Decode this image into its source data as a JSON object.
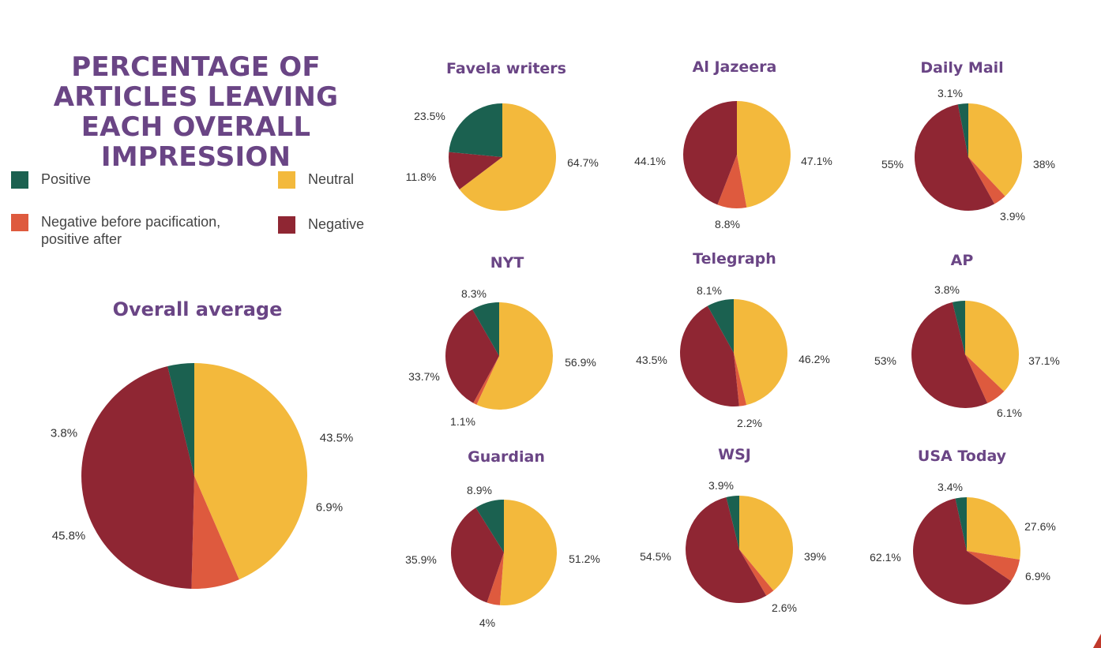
{
  "title": "PERCENTAGE OF ARTICLES LEAVING EACH OVERALL IMPRESSION",
  "legend": [
    {
      "label": "Positive",
      "color": "#1b6150"
    },
    {
      "label": "Neutral",
      "color": "#f3b93c"
    },
    {
      "label": "Negative before pacification, positive after",
      "color": "#de5a3e"
    },
    {
      "label": "Negative",
      "color": "#8f2633"
    }
  ],
  "colors": {
    "positive": "#1b6150",
    "neutral": "#f3b93c",
    "negbefore": "#de5a3e",
    "negative": "#8f2633",
    "title": "#6a4585"
  },
  "chart_data": [
    {
      "type": "pie",
      "title": "Overall average",
      "labels": [
        "Neutral",
        "Negative before pacification, positive after",
        "Negative",
        "Positive"
      ],
      "values": [
        43.5,
        6.9,
        45.8,
        3.8
      ],
      "value_labels": [
        "43.5%",
        "6.9%",
        "45.8%",
        "3.8%"
      ]
    },
    {
      "type": "pie",
      "title": "Favela writers",
      "labels": [
        "Neutral",
        "Negative before pacification, positive after",
        "Negative",
        "Positive"
      ],
      "values": [
        64.7,
        0,
        11.8,
        23.5
      ],
      "value_labels": [
        "64.7%",
        "",
        "11.8%",
        "23.5%"
      ]
    },
    {
      "type": "pie",
      "title": "Al Jazeera",
      "labels": [
        "Neutral",
        "Negative before pacification, positive after",
        "Negative",
        "Positive"
      ],
      "values": [
        47.1,
        8.8,
        44.1,
        0
      ],
      "value_labels": [
        "47.1%",
        "8.8%",
        "44.1%",
        ""
      ]
    },
    {
      "type": "pie",
      "title": "Daily Mail",
      "labels": [
        "Neutral",
        "Negative before pacification, positive after",
        "Negative",
        "Positive"
      ],
      "values": [
        38,
        3.9,
        55,
        3.1
      ],
      "value_labels": [
        "38%",
        "3.9%",
        "55%",
        "3.1%"
      ]
    },
    {
      "type": "pie",
      "title": "NYT",
      "labels": [
        "Neutral",
        "Negative before pacification, positive after",
        "Negative",
        "Positive"
      ],
      "values": [
        56.9,
        1.1,
        33.7,
        8.3
      ],
      "value_labels": [
        "56.9%",
        "1.1%",
        "33.7%",
        "8.3%"
      ]
    },
    {
      "type": "pie",
      "title": "Telegraph",
      "labels": [
        "Neutral",
        "Negative before pacification, positive after",
        "Negative",
        "Positive"
      ],
      "values": [
        46.2,
        2.2,
        43.5,
        8.1
      ],
      "value_labels": [
        "46.2%",
        "2.2%",
        "43.5%",
        "8.1%"
      ]
    },
    {
      "type": "pie",
      "title": "AP",
      "labels": [
        "Neutral",
        "Negative before pacification, positive after",
        "Negative",
        "Positive"
      ],
      "values": [
        37.1,
        6.1,
        53,
        3.8
      ],
      "value_labels": [
        "37.1%",
        "6.1%",
        "53%",
        "3.8%"
      ]
    },
    {
      "type": "pie",
      "title": "Guardian",
      "labels": [
        "Neutral",
        "Negative before pacification, positive after",
        "Negative",
        "Positive"
      ],
      "values": [
        51.2,
        4,
        35.9,
        8.9
      ],
      "value_labels": [
        "51.2%",
        "4%",
        "35.9%",
        "8.9%"
      ]
    },
    {
      "type": "pie",
      "title": "WSJ",
      "labels": [
        "Neutral",
        "Negative before pacification, positive after",
        "Negative",
        "Positive"
      ],
      "values": [
        39,
        2.6,
        54.5,
        3.9
      ],
      "value_labels": [
        "39%",
        "2.6%",
        "54.5%",
        "3.9%"
      ]
    },
    {
      "type": "pie",
      "title": "USA Today",
      "labels": [
        "Neutral",
        "Negative before pacification, positive after",
        "Negative",
        "Positive"
      ],
      "values": [
        27.6,
        6.9,
        62.1,
        3.4
      ],
      "value_labels": [
        "27.6%",
        "6.9%",
        "62.1%",
        "3.4%"
      ]
    }
  ]
}
